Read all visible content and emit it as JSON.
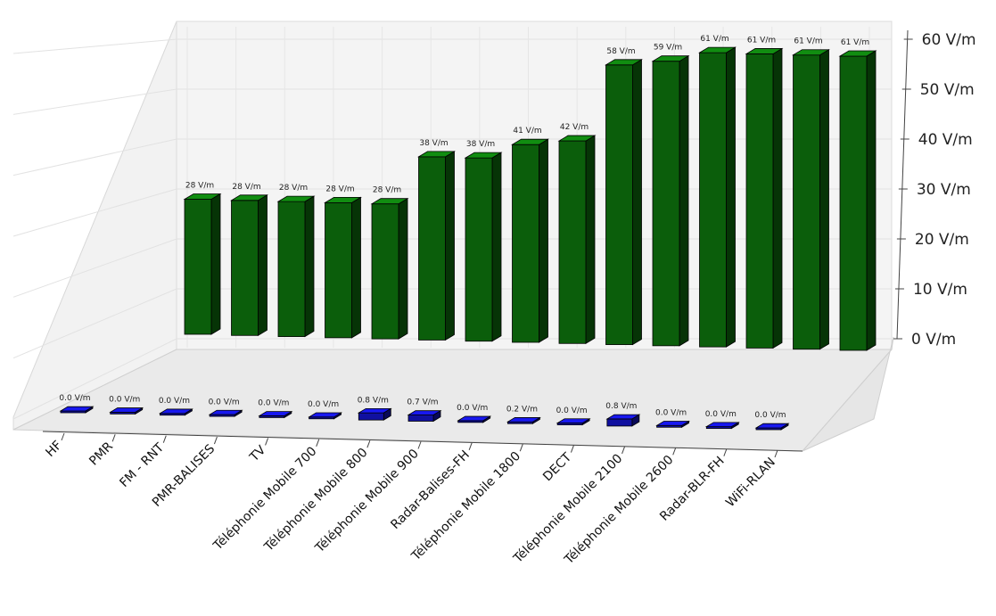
{
  "chart_data": {
    "type": "bar",
    "title": "",
    "xlabel": "",
    "ylabel": "",
    "unit": "V/m",
    "zlim": [
      0,
      60
    ],
    "z_ticks": [
      "0 V/m",
      "10 V/m",
      "20 V/m",
      "30 V/m",
      "40 V/m",
      "50 V/m",
      "60 V/m"
    ],
    "categories": [
      "HF",
      "PMR",
      "FM - RNT",
      "PMR-BALISES",
      "TV",
      "Téléphonie Mobile 700",
      "Téléphonie Mobile 800",
      "Téléphonie Mobile 900",
      "Radar-Balises-FH",
      "Téléphonie Mobile 1800",
      "DECT",
      "Téléphonie Mobile 2100",
      "Téléphonie Mobile 2600",
      "Radar-BLR-FH",
      "WiFi-RLAN"
    ],
    "series": [
      {
        "color": "#0b5e0b",
        "values": [
          28,
          28,
          28,
          28,
          28,
          38,
          38,
          41,
          42,
          58,
          59,
          61,
          61,
          61,
          61
        ],
        "labels": [
          "28 V/m",
          "28 V/m",
          "28 V/m",
          "28 V/m",
          "28 V/m",
          "38 V/m",
          "38 V/m",
          "41 V/m",
          "42 V/m",
          "58 V/m",
          "59 V/m",
          "61 V/m",
          "61 V/m",
          "61 V/m",
          "61 V/m"
        ]
      },
      {
        "color": "#1010a0",
        "values": [
          0.0,
          0.0,
          0.0,
          0.0,
          0.0,
          0.0,
          0.8,
          0.7,
          0.0,
          0.2,
          0.0,
          0.8,
          0.0,
          0.0,
          0.0
        ],
        "labels": [
          "0.0 V/m",
          "0.0 V/m",
          "0.0 V/m",
          "0.0 V/m",
          "0.0 V/m",
          "0.0 V/m",
          "0.8 V/m",
          "0.7 V/m",
          "0.0 V/m",
          "0.2 V/m",
          "0.0 V/m",
          "0.8 V/m",
          "0.0 V/m",
          "0.0 V/m",
          "0.0 V/m"
        ]
      }
    ],
    "grid": true
  }
}
